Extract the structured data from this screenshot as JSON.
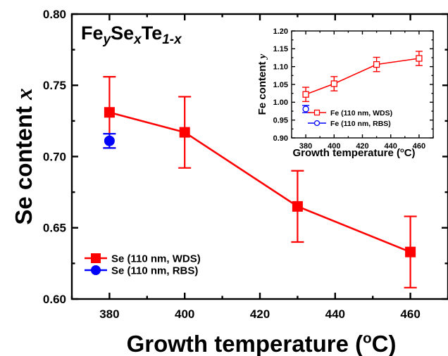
{
  "chart_data": [
    {
      "type": "line",
      "title": "Fe_y Se_x Te_1-x",
      "title_parts": [
        "Fe",
        "y",
        "Se",
        "x",
        "Te",
        "1-x"
      ],
      "xlabel": "Growth temperature",
      "xlabel_unit": "(oC)",
      "ylabel": "Se content x",
      "xlim": [
        370,
        470
      ],
      "ylim": [
        0.6,
        0.8
      ],
      "xticks": [
        380,
        400,
        420,
        440,
        460
      ],
      "xtick_labels": [
        "380",
        "400",
        "420",
        "440",
        "460"
      ],
      "yticks": [
        0.6,
        0.65,
        0.7,
        0.75,
        0.8
      ],
      "ytick_labels": [
        "0.60",
        "0.65",
        "0.70",
        "0.75",
        "0.80"
      ],
      "grid": false,
      "legend_position": "bottom-left",
      "series": [
        {
          "name": "Se (110 nm, WDS)",
          "color": "#ff0000",
          "marker": "filled-square",
          "line": true,
          "x": [
            380,
            400,
            430,
            460
          ],
          "y": [
            0.731,
            0.717,
            0.665,
            0.633
          ],
          "err": [
            0.025,
            0.025,
            0.025,
            0.025
          ]
        },
        {
          "name": "Se (110 nm, RBS)",
          "color": "#0000ff",
          "marker": "filled-circle",
          "line": false,
          "x": [
            380
          ],
          "y": [
            0.711
          ],
          "err": [
            0.005
          ]
        }
      ]
    },
    {
      "type": "line",
      "title": "",
      "xlabel": "Growth temperature",
      "xlabel_unit": "(oC)",
      "ylabel": "Fe content y",
      "xlim": [
        370,
        470
      ],
      "ylim": [
        0.9,
        1.2
      ],
      "xticks": [
        380,
        400,
        420,
        440,
        460
      ],
      "xtick_labels": [
        "380",
        "400",
        "420",
        "440",
        "460"
      ],
      "yticks": [
        0.9,
        0.95,
        1.0,
        1.05,
        1.1,
        1.15,
        1.2
      ],
      "ytick_labels": [
        "0.90",
        "0.95",
        "1.00",
        "1.05",
        "1.10",
        "1.15",
        "1.20"
      ],
      "grid": false,
      "legend_position": "bottom-right",
      "series": [
        {
          "name": "Fe (110 nm, WDS)",
          "color": "#ff0000",
          "marker": "open-square",
          "line": true,
          "x": [
            380,
            400,
            430,
            460
          ],
          "y": [
            1.022,
            1.052,
            1.106,
            1.123
          ],
          "err": [
            0.02,
            0.02,
            0.02,
            0.02
          ]
        },
        {
          "name": "Fe (110 nm, RBS)",
          "color": "#0000ff",
          "marker": "open-circle",
          "line": false,
          "x": [
            380
          ],
          "y": [
            0.981
          ],
          "err": [
            0.01
          ]
        }
      ]
    }
  ]
}
